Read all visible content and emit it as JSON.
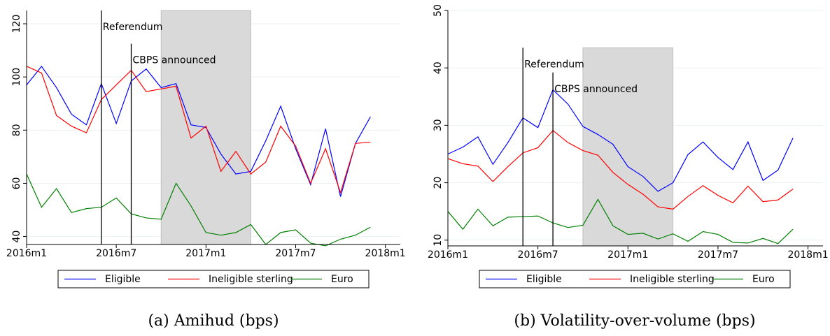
{
  "chart_data": [
    {
      "type": "line",
      "title": "(a) Amihud (bps)",
      "x": [
        "2016m1",
        "2016m2",
        "2016m3",
        "2016m4",
        "2016m5",
        "2016m6",
        "2016m7",
        "2016m8",
        "2016m9",
        "2016m10",
        "2016m11",
        "2016m12",
        "2017m1",
        "2017m2",
        "2017m3",
        "2017m4",
        "2017m5",
        "2017m6",
        "2017m7",
        "2017m8",
        "2017m9",
        "2017m10",
        "2017m11",
        "2017m12"
      ],
      "series": [
        {
          "name": "Eligible",
          "color": "#0000ff",
          "values": [
            97,
            104,
            96,
            86,
            82,
            97.5,
            82.5,
            98.5,
            103,
            96,
            97.5,
            82,
            81,
            71,
            63.5,
            64.5,
            76,
            89,
            73,
            59.5,
            80.5,
            55,
            75,
            85
          ]
        },
        {
          "name": "Ineligible sterling",
          "color": "#ff0000",
          "values": [
            104,
            101.5,
            85.5,
            81.5,
            79,
            91.5,
            97,
            102.5,
            94.5,
            95.5,
            96.5,
            77,
            81.5,
            64.5,
            72,
            63.5,
            68,
            81.5,
            74,
            60,
            73,
            56.5,
            75,
            75.5
          ]
        },
        {
          "name": "Euro",
          "color": "#008000",
          "values": [
            63.5,
            51,
            58,
            49,
            50.5,
            51,
            54.5,
            48.5,
            47,
            46.5,
            60,
            51.5,
            41.5,
            40.5,
            41.5,
            44.5,
            37,
            41.5,
            42.5,
            37.5,
            36.5,
            39,
            40.5,
            43.5
          ]
        }
      ],
      "xlim": [
        "2016m1",
        "2018m2"
      ],
      "xticks": [
        "2016m1",
        "2016m7",
        "2017m1",
        "2017m7",
        "2018m1"
      ],
      "ylim": [
        37,
        125
      ],
      "yticks": [
        40,
        60,
        80,
        100,
        120
      ],
      "grid": true,
      "shade": {
        "x": [
          "2016m10",
          "2017m4"
        ],
        "y": 125
      },
      "events": [
        {
          "x": "2016m6",
          "y": 125,
          "label": "Referendum"
        },
        {
          "x": "2016m8",
          "y": 112.5,
          "label": "CBPS announced"
        }
      ]
    },
    {
      "type": "line",
      "title": "(b) Volatility-over-volume (bps)",
      "x": [
        "2016m1",
        "2016m2",
        "2016m3",
        "2016m4",
        "2016m5",
        "2016m6",
        "2016m7",
        "2016m8",
        "2016m9",
        "2016m10",
        "2016m11",
        "2016m12",
        "2017m1",
        "2017m2",
        "2017m3",
        "2017m4",
        "2017m5",
        "2017m6",
        "2017m7",
        "2017m8",
        "2017m9",
        "2017m10",
        "2017m11",
        "2017m12"
      ],
      "series": [
        {
          "name": "Eligible",
          "color": "#0000ff",
          "values": [
            25,
            26.2,
            28,
            23.2,
            27,
            31.3,
            29.6,
            36.2,
            33.7,
            29.8,
            28.4,
            26.7,
            22.8,
            21.1,
            18.5,
            20,
            24.9,
            27.1,
            24.4,
            22.3,
            27.1,
            20.4,
            22.2,
            27.8
          ]
        },
        {
          "name": "Ineligible sterling",
          "color": "#ff0000",
          "values": [
            24.2,
            23.3,
            22.9,
            20.2,
            22.8,
            25.2,
            26.1,
            29.1,
            27,
            25.6,
            24.8,
            21.8,
            19.7,
            18,
            15.8,
            15.4,
            17.6,
            19.5,
            17.8,
            16.5,
            19.4,
            16.7,
            17,
            18.9
          ]
        },
        {
          "name": "Euro",
          "color": "#008000",
          "values": [
            15,
            11.9,
            15.4,
            12.5,
            14,
            14.1,
            14.2,
            13,
            12.2,
            12.6,
            17.1,
            12.5,
            11,
            11.2,
            10.2,
            11.1,
            9.8,
            11.5,
            11,
            9.6,
            9.5,
            10.3,
            9.4,
            11.9
          ]
        }
      ],
      "xlim": [
        "2016m1",
        "2018m2"
      ],
      "xticks": [
        "2016m1",
        "2016m7",
        "2017m1",
        "2017m7",
        "2018m1"
      ],
      "ylim": [
        9,
        50
      ],
      "yticks": [
        10,
        20,
        30,
        40,
        50
      ],
      "grid": true,
      "shade": {
        "x": [
          "2016m10",
          "2017m4"
        ],
        "y": 43.5
      },
      "events": [
        {
          "x": "2016m6",
          "y": 43.5,
          "label": "Referendum"
        },
        {
          "x": "2016m8",
          "y": 39.2,
          "label": "CBPS announced"
        }
      ]
    }
  ]
}
